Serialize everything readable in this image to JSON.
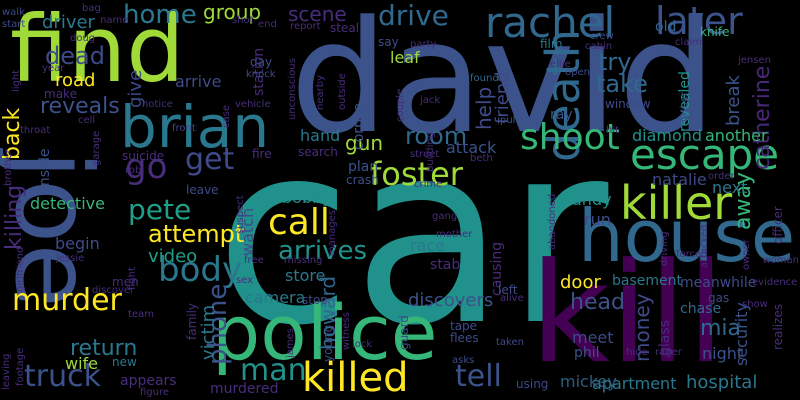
{
  "words": [
    {
      "text": "car",
      "color": "#21918c"
    },
    {
      "text": "david",
      "color": "#3b528b"
    },
    {
      "text": "find",
      "color": "#a0da39"
    },
    {
      "text": "joe",
      "color": "#3b528b"
    },
    {
      "text": "kill",
      "color": "#440154"
    },
    {
      "text": "police",
      "color": "#35b779"
    },
    {
      "text": "house",
      "color": "#31688e"
    },
    {
      "text": "brian",
      "color": "#2a788e"
    },
    {
      "text": "killer",
      "color": "#a0da39"
    },
    {
      "text": "escape",
      "color": "#35b779"
    },
    {
      "text": "rachel",
      "color": "#31688e"
    },
    {
      "text": "later",
      "color": "#3b528b"
    },
    {
      "text": "killed",
      "color": "#fde725"
    },
    {
      "text": "death",
      "color": "#31688e"
    },
    {
      "text": "call",
      "color": "#fde725"
    },
    {
      "text": "drive",
      "color": "#31688e"
    },
    {
      "text": "body",
      "color": "#2a788e"
    },
    {
      "text": "shoot",
      "color": "#35b779"
    },
    {
      "text": "man",
      "color": "#21918c"
    },
    {
      "text": "go",
      "color": "#472d7b"
    },
    {
      "text": "get",
      "color": "#3e4a89"
    },
    {
      "text": "pete",
      "color": "#1f9e89"
    },
    {
      "text": "home",
      "color": "#2a788e"
    },
    {
      "text": "foster",
      "color": "#a0da39"
    },
    {
      "text": "murder",
      "color": "#fde725"
    },
    {
      "text": "truck",
      "color": "#3b528b"
    },
    {
      "text": "phone",
      "color": "#3b528b"
    },
    {
      "text": "tell",
      "color": "#3b528b"
    },
    {
      "text": "arrives",
      "color": "#21918c"
    },
    {
      "text": "attempt",
      "color": "#fde725"
    },
    {
      "text": "dead",
      "color": "#3e4a89"
    },
    {
      "text": "reveals",
      "color": "#3b528b"
    },
    {
      "text": "back",
      "color": "#fde725"
    },
    {
      "text": "killing",
      "color": "#472d7b"
    },
    {
      "text": "room",
      "color": "#31688e"
    },
    {
      "text": "gun",
      "color": "#a0da39"
    },
    {
      "text": "try",
      "color": "#31688e"
    },
    {
      "text": "take",
      "color": "#31688e"
    },
    {
      "text": "see",
      "color": "#3e4a89"
    },
    {
      "text": "away",
      "color": "#35b779"
    },
    {
      "text": "catherine",
      "color": "#482878"
    },
    {
      "text": "group",
      "color": "#a0da39"
    },
    {
      "text": "scene",
      "color": "#472d7b"
    },
    {
      "text": "give",
      "color": "#3e4a89"
    },
    {
      "text": "howard",
      "color": "#31688e"
    },
    {
      "text": "return",
      "color": "#2a788e"
    },
    {
      "text": "head",
      "color": "#3b528b"
    },
    {
      "text": "mia",
      "color": "#31688e"
    },
    {
      "text": "money",
      "color": "#3e4a89"
    },
    {
      "text": "victim",
      "color": "#2a788e"
    },
    {
      "text": "video",
      "color": "#1f9e89"
    },
    {
      "text": "help",
      "color": "#3e4a89"
    },
    {
      "text": "friend",
      "color": "#3e4a89"
    },
    {
      "text": "driver",
      "color": "#2a788e"
    },
    {
      "text": "road",
      "color": "#fde725"
    },
    {
      "text": "arrive",
      "color": "#3e4a89"
    },
    {
      "text": "station",
      "color": "#472d7b"
    },
    {
      "text": "watch",
      "color": "#3e4a89"
    },
    {
      "text": "store",
      "color": "#2a788e"
    },
    {
      "text": "bobby",
      "color": "#21918c"
    },
    {
      "text": "corpse",
      "color": "#3b528b"
    },
    {
      "text": "leaf",
      "color": "#a0da39"
    },
    {
      "text": "attack",
      "color": "#3b528b"
    },
    {
      "text": "diamond",
      "color": "#21918c"
    },
    {
      "text": "another",
      "color": "#35b779"
    },
    {
      "text": "break",
      "color": "#3b528b"
    },
    {
      "text": "revealed",
      "color": "#21918c"
    },
    {
      "text": "natalie",
      "color": "#3e4a89"
    },
    {
      "text": "next",
      "color": "#2a788e"
    },
    {
      "text": "andy",
      "color": "#21918c"
    },
    {
      "text": "run",
      "color": "#3e4a89"
    },
    {
      "text": "detective",
      "color": "#35b779"
    },
    {
      "text": "inside",
      "color": "#3b528b"
    },
    {
      "text": "begin",
      "color": "#3e4a89"
    },
    {
      "text": "race",
      "color": "#2a788e"
    },
    {
      "text": "stab",
      "color": "#472d7b"
    },
    {
      "text": "causing",
      "color": "#472d7b"
    },
    {
      "text": "door",
      "color": "#fde725"
    },
    {
      "text": "basement",
      "color": "#2a788e"
    },
    {
      "text": "meanwhile",
      "color": "#3e4a89"
    },
    {
      "text": "discovers",
      "color": "#3b528b"
    },
    {
      "text": "camera",
      "color": "#2a788e"
    },
    {
      "text": "stop",
      "color": "#3e4a89"
    },
    {
      "text": "meet",
      "color": "#3e4a89"
    },
    {
      "text": "phil",
      "color": "#3b528b"
    },
    {
      "text": "glass",
      "color": "#472d7b"
    },
    {
      "text": "night",
      "color": "#3b528b"
    },
    {
      "text": "security",
      "color": "#3b528b"
    },
    {
      "text": "hospital",
      "color": "#2a788e"
    },
    {
      "text": "apartment",
      "color": "#2a788e"
    },
    {
      "text": "mickey",
      "color": "#31688e"
    },
    {
      "text": "murdered",
      "color": "#472d7b"
    },
    {
      "text": "appears",
      "color": "#472d7b"
    },
    {
      "text": "wife",
      "color": "#a0da39"
    },
    {
      "text": "new",
      "color": "#2a788e"
    },
    {
      "text": "hand",
      "color": "#2a788e"
    },
    {
      "text": "search",
      "color": "#472d7b"
    },
    {
      "text": "plan",
      "color": "#3b528b"
    },
    {
      "text": "crash",
      "color": "#3b528b"
    },
    {
      "text": "fire",
      "color": "#472d7b"
    },
    {
      "text": "leave",
      "color": "#3e4a89"
    },
    {
      "text": "suicide",
      "color": "#472d7b"
    },
    {
      "text": "family",
      "color": "#472d7b"
    },
    {
      "text": "chase",
      "color": "#31688e"
    },
    {
      "text": "gas",
      "color": "#3e4a89"
    },
    {
      "text": "officer",
      "color": "#472d7b"
    },
    {
      "text": "film",
      "color": "#2a788e"
    },
    {
      "text": "old",
      "color": "#31688e"
    },
    {
      "text": "knife",
      "color": "#35b779"
    },
    {
      "text": "say",
      "color": "#3e4a89"
    },
    {
      "text": "steal",
      "color": "#472d7b"
    },
    {
      "text": "report",
      "color": "#472d7b"
    },
    {
      "text": "shot",
      "color": "#472d7b"
    },
    {
      "text": "end",
      "color": "#482878"
    },
    {
      "text": "crew",
      "color": "#3e4a89"
    },
    {
      "text": "cabin",
      "color": "#472d7b"
    },
    {
      "text": "ellie",
      "color": "#472d7b"
    },
    {
      "text": "open",
      "color": "#3e4a89"
    },
    {
      "text": "found",
      "color": "#31688e"
    },
    {
      "text": "window",
      "color": "#3e4a89"
    },
    {
      "text": "pull",
      "color": "#3b528b"
    },
    {
      "text": "ray",
      "color": "#3b528b"
    },
    {
      "text": "jack",
      "color": "#472d7b"
    },
    {
      "text": "father",
      "color": "#3b528b"
    },
    {
      "text": "hit",
      "color": "#472d7b"
    },
    {
      "text": "jensen",
      "color": "#472d7b"
    },
    {
      "text": "claim",
      "color": "#472d7b"
    },
    {
      "text": "day",
      "color": "#3e4a89"
    },
    {
      "text": "knock",
      "color": "#3e4a89"
    },
    {
      "text": "front",
      "color": "#3e4a89"
    },
    {
      "text": "case",
      "color": "#472d7b"
    },
    {
      "text": "vehicle",
      "color": "#472d7b"
    },
    {
      "text": "notice",
      "color": "#472d7b"
    },
    {
      "text": "make",
      "color": "#472d7b"
    },
    {
      "text": "light",
      "color": "#472d7b"
    },
    {
      "text": "walk",
      "color": "#3e4a89"
    },
    {
      "text": "start",
      "color": "#3e4a89"
    },
    {
      "text": "bag",
      "color": "#472d7b"
    },
    {
      "text": "name",
      "color": "#472d7b"
    },
    {
      "text": "doug",
      "color": "#472d7b"
    },
    {
      "text": "year",
      "color": "#472d7b"
    },
    {
      "text": "garage",
      "color": "#472d7b"
    },
    {
      "text": "throat",
      "color": "#472d7b"
    },
    {
      "text": "cell",
      "color": "#472d7b"
    },
    {
      "text": "rob",
      "color": "#472d7b"
    },
    {
      "text": "fight",
      "color": "#472d7b"
    },
    {
      "text": "men",
      "color": "#472d7b"
    },
    {
      "text": "discover",
      "color": "#472d7b"
    },
    {
      "text": "jessie",
      "color": "#472d7b"
    },
    {
      "text": "sex",
      "color": "#472d7b"
    },
    {
      "text": "free",
      "color": "#472d7b"
    },
    {
      "text": "missing",
      "color": "#472d7b"
    },
    {
      "text": "team",
      "color": "#472d7b"
    },
    {
      "text": "leaving",
      "color": "#472d7b"
    },
    {
      "text": "footage",
      "color": "#472d7b"
    },
    {
      "text": "young",
      "color": "#3e4a89"
    },
    {
      "text": "james",
      "color": "#472d7b"
    },
    {
      "text": "witness",
      "color": "#472d7b"
    },
    {
      "text": "lock",
      "color": "#472d7b"
    },
    {
      "text": "guard",
      "color": "#3e4a89"
    },
    {
      "text": "flees",
      "color": "#3e4a89"
    },
    {
      "text": "asks",
      "color": "#3e4a89"
    },
    {
      "text": "tape",
      "color": "#3e4a89"
    },
    {
      "text": "taken",
      "color": "#3e4a89"
    },
    {
      "text": "using",
      "color": "#3e4a89"
    },
    {
      "text": "left",
      "color": "#3e4a89"
    },
    {
      "text": "alive",
      "color": "#472d7b"
    },
    {
      "text": "mother",
      "color": "#472d7b"
    },
    {
      "text": "gang",
      "color": "#472d7b"
    },
    {
      "text": "crime",
      "color": "#472d7b"
    },
    {
      "text": "abandoned",
      "color": "#472d7b"
    },
    {
      "text": "street",
      "color": "#472d7b"
    },
    {
      "text": "building",
      "color": "#472d7b"
    },
    {
      "text": "beth",
      "color": "#472d7b"
    },
    {
      "text": "rager",
      "color": "#472d7b"
    },
    {
      "text": "hide",
      "color": "#472d7b"
    },
    {
      "text": "forced",
      "color": "#472d7b"
    },
    {
      "text": "driving",
      "color": "#472d7b"
    },
    {
      "text": "attacked",
      "color": "#472d7b"
    },
    {
      "text": "order",
      "color": "#472d7b"
    },
    {
      "text": "show",
      "color": "#472d7b"
    },
    {
      "text": "evidence",
      "color": "#472d7b"
    },
    {
      "text": "realizes",
      "color": "#472d7b"
    },
    {
      "text": "woman",
      "color": "#472d7b"
    },
    {
      "text": "owner",
      "color": "#472d7b"
    },
    {
      "text": "figure",
      "color": "#472d7b"
    },
    {
      "text": "brother",
      "color": "#472d7b"
    },
    {
      "text": "outside",
      "color": "#472d7b"
    },
    {
      "text": "unconscious",
      "color": "#472d7b"
    },
    {
      "text": "nearby",
      "color": "#472d7b"
    },
    {
      "text": "couple",
      "color": "#472d7b"
    },
    {
      "text": "party",
      "color": "#472d7b"
    },
    {
      "text": "suspect",
      "color": "#472d7b"
    },
    {
      "text": "manages",
      "color": "#472d7b"
    },
    {
      "text": "girlfriend",
      "color": "#472d7b"
    }
  ]
}
